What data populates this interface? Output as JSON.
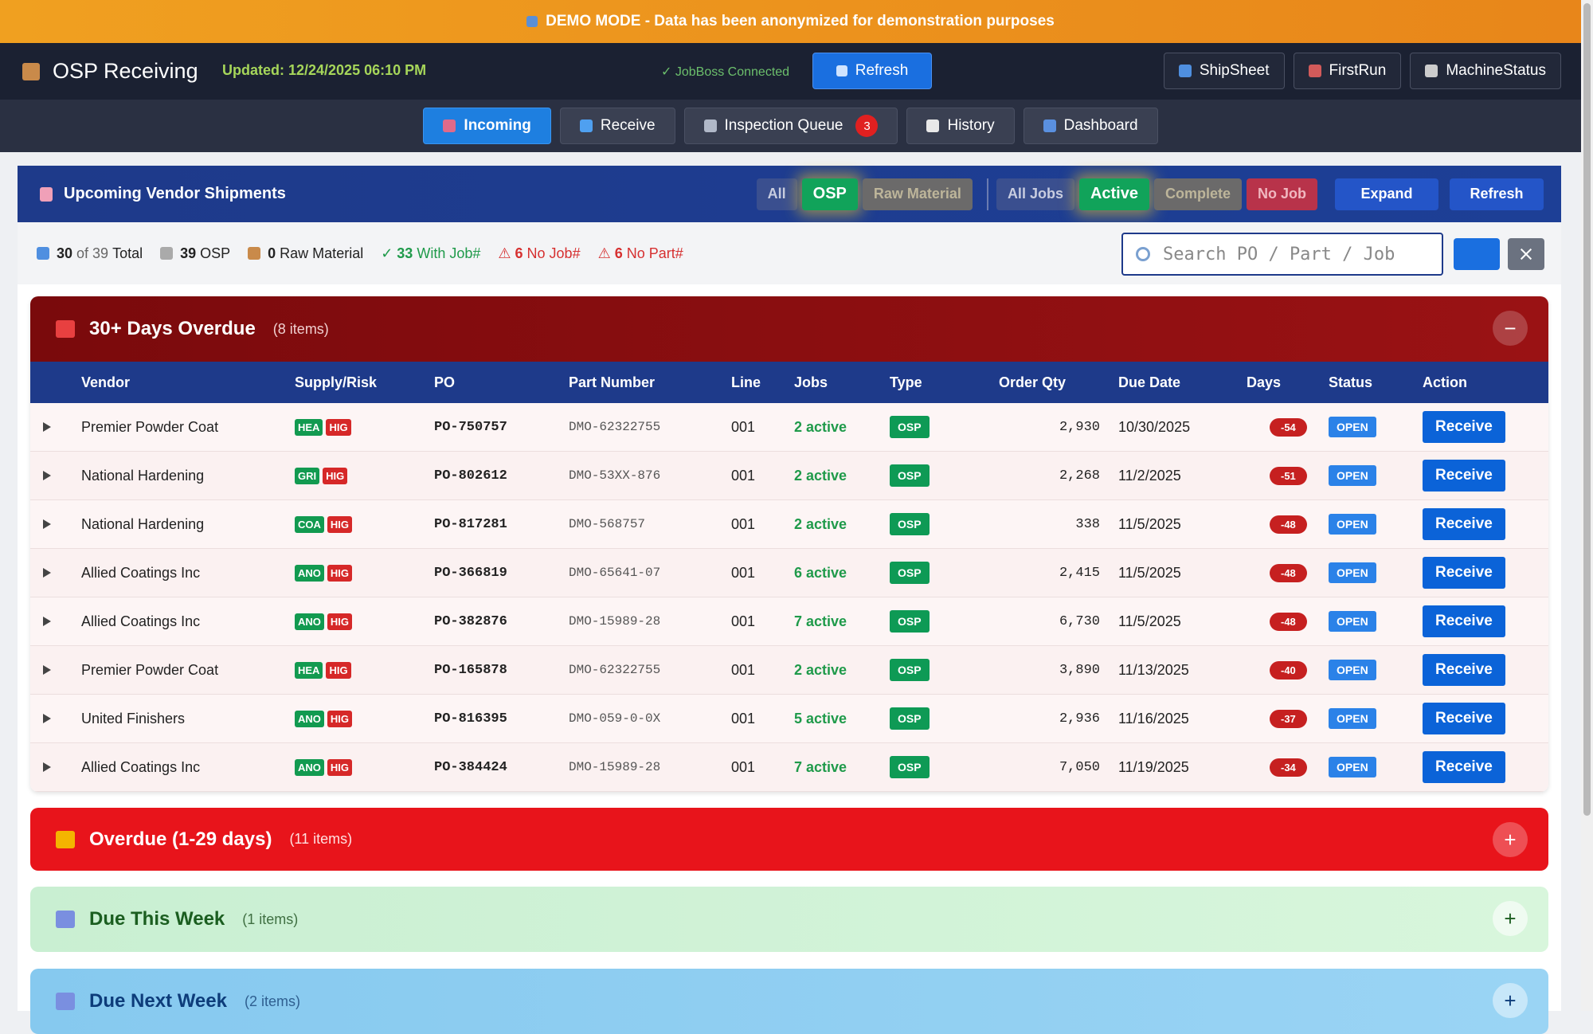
{
  "banner": "DEMO MODE - Data has been anonymized for demonstration purposes",
  "header": {
    "title": "OSP Receiving",
    "updated": "Updated: 12/24/2025 06:10 PM",
    "status": "✓ JobBoss Connected",
    "refresh": "Refresh",
    "links": [
      "ShipSheet",
      "FirstRun",
      "MachineStatus"
    ]
  },
  "tabs": [
    {
      "label": "Incoming"
    },
    {
      "label": "Receive"
    },
    {
      "label": "Inspection Queue",
      "badge": 3
    },
    {
      "label": "History"
    },
    {
      "label": "Dashboard"
    }
  ],
  "panel": {
    "title": "Upcoming Vendor Shipments",
    "type_filters": [
      "All",
      "OSP",
      "Raw Material"
    ],
    "job_filters": [
      "All Jobs",
      "Active",
      "Complete",
      "No Job"
    ],
    "expand": "Expand",
    "refresh": "Refresh"
  },
  "stats": [
    {
      "count": 30,
      "detail": "of 39",
      "label": "Total"
    },
    {
      "count": 39,
      "label": "OSP"
    },
    {
      "count": 0,
      "label": "Raw Material"
    },
    {
      "prefix": "✓",
      "count": 33,
      "label": "With Job#"
    },
    {
      "prefix": "⚠",
      "count": 6,
      "label": "No Job#"
    },
    {
      "prefix": "⚠",
      "count": 6,
      "label": "No Part#"
    }
  ],
  "search_placeholder": "Search PO / Part / Job",
  "columns": [
    "Vendor",
    "Supply/Risk",
    "PO",
    "Part Number",
    "Line",
    "Jobs",
    "Type",
    "Order Qty",
    "Due Date",
    "Days",
    "Status",
    "Action"
  ],
  "sections": [
    {
      "title": "30+ Days Overdue",
      "count_label": "(8 items)",
      "toggle": "−",
      "rows": [
        {
          "vendor": "Premier Powder Coat",
          "supply": [
            "HEA",
            "HIG"
          ],
          "po": "PO-750757",
          "part": "DMO-62322755",
          "line": "001",
          "jobs": "2 active",
          "type": "OSP",
          "qty": "2,930",
          "due": "10/30/2025",
          "days": -54,
          "status": "OPEN",
          "action": "Receive"
        },
        {
          "vendor": "National Hardening",
          "supply": [
            "GRI",
            "HIG"
          ],
          "po": "PO-802612",
          "part": "DMO-53XX-876",
          "line": "001",
          "jobs": "2 active",
          "type": "OSP",
          "qty": "2,268",
          "due": "11/2/2025",
          "days": -51,
          "status": "OPEN",
          "action": "Receive"
        },
        {
          "vendor": "National Hardening",
          "supply": [
            "COA",
            "HIG"
          ],
          "po": "PO-817281",
          "part": "DMO-568757",
          "line": "001",
          "jobs": "2 active",
          "type": "OSP",
          "qty": "338",
          "due": "11/5/2025",
          "days": -48,
          "status": "OPEN",
          "action": "Receive"
        },
        {
          "vendor": "Allied Coatings Inc",
          "supply": [
            "ANO",
            "HIG"
          ],
          "po": "PO-366819",
          "part": "DMO-65641-07",
          "line": "001",
          "jobs": "6 active",
          "type": "OSP",
          "qty": "2,415",
          "due": "11/5/2025",
          "days": -48,
          "status": "OPEN",
          "action": "Receive"
        },
        {
          "vendor": "Allied Coatings Inc",
          "supply": [
            "ANO",
            "HIG"
          ],
          "po": "PO-382876",
          "part": "DMO-15989-28",
          "line": "001",
          "jobs": "7 active",
          "type": "OSP",
          "qty": "6,730",
          "due": "11/5/2025",
          "days": -48,
          "status": "OPEN",
          "action": "Receive"
        },
        {
          "vendor": "Premier Powder Coat",
          "supply": [
            "HEA",
            "HIG"
          ],
          "po": "PO-165878",
          "part": "DMO-62322755",
          "line": "001",
          "jobs": "2 active",
          "type": "OSP",
          "qty": "3,890",
          "due": "11/13/2025",
          "days": -40,
          "status": "OPEN",
          "action": "Receive"
        },
        {
          "vendor": "United Finishers",
          "supply": [
            "ANO",
            "HIG"
          ],
          "po": "PO-816395",
          "part": "DMO-059-0-0X",
          "line": "001",
          "jobs": "5 active",
          "type": "OSP",
          "qty": "2,936",
          "due": "11/16/2025",
          "days": -37,
          "status": "OPEN",
          "action": "Receive"
        },
        {
          "vendor": "Allied Coatings Inc",
          "supply": [
            "ANO",
            "HIG"
          ],
          "po": "PO-384424",
          "part": "DMO-15989-28",
          "line": "001",
          "jobs": "7 active",
          "type": "OSP",
          "qty": "7,050",
          "due": "11/19/2025",
          "days": -34,
          "status": "OPEN",
          "action": "Receive"
        }
      ]
    },
    {
      "title": "Overdue (1-29 days)",
      "count_label": "(11 items)",
      "toggle": "+"
    },
    {
      "title": "Due This Week",
      "count_label": "(1 items)",
      "toggle": "+"
    },
    {
      "title": "Due Next Week",
      "count_label": "(2 items)",
      "toggle": "+"
    }
  ]
}
